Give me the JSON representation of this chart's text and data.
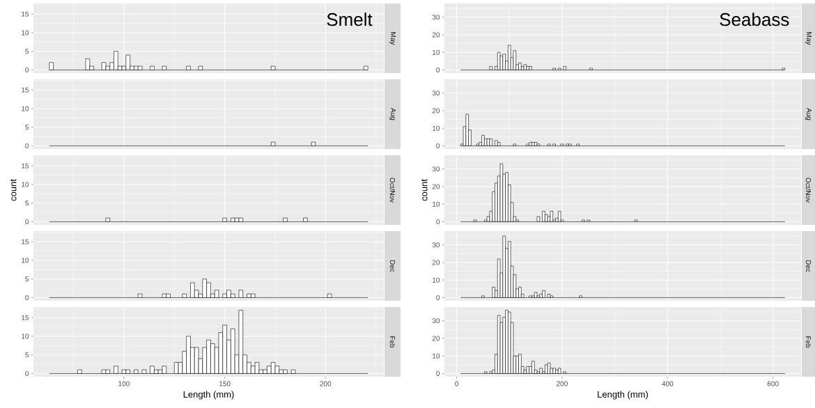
{
  "chart_data": [
    {
      "type": "histogram",
      "title": "Smelt",
      "annotations": [
        "May"
      ],
      "color": "#ffffff",
      "grid": true,
      "tick_labels": "y",
      "xlim": [
        55.1,
        228.9
      ],
      "ylim": [
        -0.85,
        17.85
      ],
      "xticks": [
        100,
        150,
        200
      ],
      "yticks": [
        0,
        5,
        10,
        15
      ],
      "bins": [
        63,
        65,
        67,
        69,
        71,
        73,
        75,
        77,
        79,
        81,
        83,
        85,
        87,
        89,
        91,
        93,
        95,
        97,
        99,
        101,
        103,
        105,
        107,
        109,
        111,
        113,
        115,
        117,
        119,
        121,
        123,
        125,
        127,
        129,
        131,
        133,
        135,
        137,
        139,
        141,
        143,
        145,
        147,
        149,
        151,
        153,
        155,
        157,
        159,
        161,
        163,
        165,
        167,
        169,
        171,
        173,
        175,
        177,
        179,
        181,
        183,
        185,
        187,
        189,
        191,
        193,
        195,
        197,
        199,
        201,
        203,
        205,
        207,
        209,
        211,
        213,
        215,
        217,
        219,
        221
      ],
      "values": [
        2,
        0,
        0,
        0,
        0,
        0,
        0,
        0,
        0,
        3,
        1,
        0,
        0,
        2,
        1,
        2,
        5,
        1,
        1,
        4,
        1,
        1,
        1,
        0,
        0,
        1,
        0,
        0,
        1,
        0,
        0,
        0,
        0,
        0,
        1,
        0,
        0,
        1,
        0,
        0,
        0,
        0,
        0,
        0,
        0,
        0,
        0,
        0,
        0,
        0,
        0,
        0,
        0,
        0,
        0,
        1,
        0,
        0,
        0,
        0,
        0,
        0,
        0,
        0,
        0,
        0,
        0,
        0,
        0,
        0,
        0,
        0,
        0,
        0,
        0,
        0,
        0,
        0,
        1
      ]
    },
    {
      "type": "histogram",
      "title": "Seabass",
      "annotations": [
        "May"
      ],
      "color": "#ffffff",
      "grid": true,
      "tick_labels": "y",
      "xlim": [
        -23.25,
        653.25
      ],
      "ylim": [
        -1.8,
        37.8
      ],
      "xticks": [
        0,
        200,
        400,
        600
      ],
      "yticks": [
        0,
        10,
        20,
        30
      ],
      "bins": [
        7.5,
        12.5,
        17.5,
        22.5,
        27.5,
        32.5,
        37.5,
        42.5,
        47.5,
        52.5,
        57.5,
        62.5,
        67.5,
        72.5,
        77.5,
        82.5,
        87.5,
        92.5,
        97.5,
        102.5,
        107.5,
        112.5,
        117.5,
        122.5,
        127.5,
        132.5,
        137.5,
        142.5,
        147.5,
        152.5,
        157.5,
        162.5,
        167.5,
        172.5,
        177.5,
        182.5,
        187.5,
        192.5,
        197.5,
        202.5,
        207.5,
        212.5,
        217.5,
        222.5,
        227.5,
        232.5,
        237.5,
        242.5,
        247.5,
        252.5,
        257.5,
        262.5,
        267.5,
        272.5,
        277.5,
        282.5,
        287.5,
        292.5,
        297.5,
        302.5,
        307.5,
        312.5,
        317.5,
        322.5,
        327.5,
        332.5,
        337.5,
        342.5,
        347.5,
        352.5,
        357.5,
        362.5,
        367.5,
        372.5,
        377.5,
        382.5,
        387.5,
        392.5,
        397.5,
        402.5,
        407.5,
        412.5,
        417.5,
        422.5,
        427.5,
        432.5,
        437.5,
        442.5,
        447.5,
        452.5,
        457.5,
        462.5,
        467.5,
        472.5,
        477.5,
        482.5,
        487.5,
        492.5,
        497.5,
        502.5,
        507.5,
        512.5,
        517.5,
        522.5,
        527.5,
        532.5,
        537.5,
        542.5,
        547.5,
        552.5,
        557.5,
        562.5,
        567.5,
        572.5,
        577.5,
        582.5,
        587.5,
        592.5,
        597.5,
        602.5,
        607.5,
        612.5,
        617.5,
        622.5
      ],
      "values": [
        0,
        0,
        0,
        0,
        0,
        0,
        0,
        0,
        0,
        0,
        0,
        2,
        0,
        2,
        10,
        8,
        9,
        5,
        14,
        7,
        11,
        3,
        4,
        2,
        3,
        2,
        2,
        0,
        0,
        0,
        0,
        0,
        0,
        0,
        0,
        1,
        0,
        1,
        0,
        2,
        0,
        0,
        0,
        0,
        0,
        0,
        0,
        0,
        0,
        1,
        0,
        0,
        0,
        0,
        0,
        0,
        0,
        0,
        0,
        0,
        0,
        0,
        0,
        0,
        0,
        0,
        0,
        0,
        0,
        0,
        0,
        0,
        0,
        0,
        0,
        0,
        0,
        0,
        0,
        0,
        0,
        0,
        0,
        0,
        0,
        0,
        0,
        0,
        0,
        0,
        0,
        0,
        0,
        0,
        0,
        0,
        0,
        0,
        0,
        0,
        0,
        0,
        0,
        0,
        0,
        0,
        0,
        0,
        0,
        0,
        0,
        0,
        0,
        0,
        0,
        0,
        0,
        0,
        0,
        0,
        0,
        0,
        1
      ]
    },
    {
      "type": "histogram",
      "annotations": [
        "Aug"
      ],
      "color": "#ffffff",
      "grid": true,
      "tick_labels": "y",
      "xlim": [
        55.1,
        228.9
      ],
      "ylim": [
        -0.85,
        17.85
      ],
      "xticks": [
        100,
        150,
        200
      ],
      "yticks": [
        0,
        5,
        10,
        15
      ],
      "bins": [
        63,
        65,
        67,
        69,
        71,
        73,
        75,
        77,
        79,
        81,
        83,
        85,
        87,
        89,
        91,
        93,
        95,
        97,
        99,
        101,
        103,
        105,
        107,
        109,
        111,
        113,
        115,
        117,
        119,
        121,
        123,
        125,
        127,
        129,
        131,
        133,
        135,
        137,
        139,
        141,
        143,
        145,
        147,
        149,
        151,
        153,
        155,
        157,
        159,
        161,
        163,
        165,
        167,
        169,
        171,
        173,
        175,
        177,
        179,
        181,
        183,
        185,
        187,
        189,
        191,
        193,
        195,
        197,
        199,
        201,
        203,
        205,
        207,
        209,
        211,
        213,
        215,
        217,
        219,
        221
      ],
      "values": [
        0,
        0,
        0,
        0,
        0,
        0,
        0,
        0,
        0,
        0,
        0,
        0,
        0,
        0,
        0,
        0,
        0,
        0,
        0,
        0,
        0,
        0,
        0,
        0,
        0,
        0,
        0,
        0,
        0,
        0,
        0,
        0,
        0,
        0,
        0,
        0,
        0,
        0,
        0,
        0,
        0,
        0,
        0,
        0,
        0,
        0,
        0,
        0,
        0,
        0,
        0,
        0,
        0,
        0,
        0,
        1,
        0,
        0,
        0,
        0,
        0,
        0,
        0,
        0,
        0,
        1,
        0,
        0,
        0,
        0,
        0,
        0,
        0,
        0,
        0,
        0,
        0,
        0,
        0
      ]
    },
    {
      "type": "histogram",
      "annotations": [
        "Aug"
      ],
      "color": "#ffffff",
      "grid": true,
      "tick_labels": "y",
      "xlim": [
        -23.25,
        653.25
      ],
      "ylim": [
        -1.8,
        37.8
      ],
      "xticks": [
        0,
        200,
        400,
        600
      ],
      "yticks": [
        0,
        10,
        20,
        30
      ],
      "bins": [
        7.5,
        12.5,
        17.5,
        22.5,
        27.5,
        32.5,
        37.5,
        42.5,
        47.5,
        52.5,
        57.5,
        62.5,
        67.5,
        72.5,
        77.5,
        82.5,
        87.5,
        92.5,
        97.5,
        102.5,
        107.5,
        112.5,
        117.5,
        122.5,
        127.5,
        132.5,
        137.5,
        142.5,
        147.5,
        152.5,
        157.5,
        162.5,
        167.5,
        172.5,
        177.5,
        182.5,
        187.5,
        192.5,
        197.5,
        202.5,
        207.5,
        212.5,
        217.5,
        222.5,
        227.5,
        232.5,
        237.5,
        242.5,
        247.5,
        252.5,
        257.5,
        262.5,
        267.5,
        272.5,
        277.5,
        282.5,
        287.5,
        292.5,
        297.5,
        302.5,
        307.5,
        312.5,
        317.5,
        322.5,
        327.5,
        332.5,
        337.5,
        342.5,
        347.5,
        352.5,
        357.5,
        362.5,
        367.5,
        372.5,
        377.5,
        382.5,
        387.5,
        392.5,
        397.5,
        402.5,
        407.5,
        412.5,
        417.5,
        422.5,
        427.5,
        432.5,
        437.5,
        442.5,
        447.5,
        452.5,
        457.5,
        462.5,
        467.5,
        472.5,
        477.5,
        482.5,
        487.5,
        492.5,
        497.5,
        502.5,
        507.5,
        512.5,
        517.5,
        522.5,
        527.5,
        532.5,
        537.5,
        542.5,
        547.5,
        552.5,
        557.5,
        562.5,
        567.5,
        572.5,
        577.5,
        582.5,
        587.5,
        592.5,
        597.5,
        602.5,
        607.5,
        612.5,
        617.5,
        622.5
      ],
      "values": [
        1,
        11,
        18,
        9,
        0,
        0,
        1,
        2,
        6,
        4,
        4,
        4,
        0,
        3,
        2,
        0,
        0,
        0,
        0,
        0,
        1,
        0,
        0,
        0,
        0,
        1,
        2,
        2,
        2,
        1,
        0,
        0,
        0,
        1,
        0,
        1,
        0,
        0,
        1,
        0,
        1,
        1,
        0,
        0,
        1,
        0,
        0,
        0,
        0,
        0,
        0,
        0,
        0,
        0,
        0,
        0,
        0,
        0,
        0,
        0,
        0,
        0,
        0,
        0,
        0,
        0,
        0,
        0,
        0,
        0,
        0,
        0,
        0,
        0,
        0,
        0,
        0,
        0,
        0,
        0,
        0,
        0,
        0,
        0,
        0,
        0,
        0,
        0,
        0,
        0,
        0,
        0,
        0,
        0,
        0,
        0,
        0,
        0,
        0,
        0,
        0,
        0,
        0,
        0,
        0,
        0,
        0,
        0,
        0,
        0,
        0,
        0,
        0,
        0,
        0,
        0,
        0,
        0,
        0,
        0,
        0,
        0,
        0
      ]
    },
    {
      "type": "histogram",
      "annotations": [
        "Oct/Nov"
      ],
      "ylabel": "count",
      "color": "#ffffff",
      "grid": true,
      "tick_labels": "y",
      "xlim": [
        55.1,
        228.9
      ],
      "ylim": [
        -0.85,
        17.85
      ],
      "xticks": [
        100,
        150,
        200
      ],
      "yticks": [
        0,
        5,
        10,
        15
      ],
      "bins": [
        63,
        65,
        67,
        69,
        71,
        73,
        75,
        77,
        79,
        81,
        83,
        85,
        87,
        89,
        91,
        93,
        95,
        97,
        99,
        101,
        103,
        105,
        107,
        109,
        111,
        113,
        115,
        117,
        119,
        121,
        123,
        125,
        127,
        129,
        131,
        133,
        135,
        137,
        139,
        141,
        143,
        145,
        147,
        149,
        151,
        153,
        155,
        157,
        159,
        161,
        163,
        165,
        167,
        169,
        171,
        173,
        175,
        177,
        179,
        181,
        183,
        185,
        187,
        189,
        191,
        193,
        195,
        197,
        199,
        201,
        203,
        205,
        207,
        209,
        211,
        213,
        215,
        217,
        219,
        221
      ],
      "values": [
        0,
        0,
        0,
        0,
        0,
        0,
        0,
        0,
        0,
        0,
        0,
        0,
        0,
        0,
        1,
        0,
        0,
        0,
        0,
        0,
        0,
        0,
        0,
        0,
        0,
        0,
        0,
        0,
        0,
        0,
        0,
        0,
        0,
        0,
        0,
        0,
        0,
        0,
        0,
        0,
        0,
        0,
        0,
        1,
        0,
        1,
        1,
        1,
        0,
        0,
        0,
        0,
        0,
        0,
        0,
        0,
        0,
        0,
        1,
        0,
        0,
        0,
        0,
        1,
        0,
        0,
        0,
        0,
        0,
        0,
        0,
        0,
        0,
        0,
        0,
        0,
        0,
        0,
        0
      ]
    },
    {
      "type": "histogram",
      "annotations": [
        "Oct/Nov"
      ],
      "ylabel": "count",
      "color": "#ffffff",
      "grid": true,
      "tick_labels": "y",
      "xlim": [
        -23.25,
        653.25
      ],
      "ylim": [
        -1.8,
        37.8
      ],
      "xticks": [
        0,
        200,
        400,
        600
      ],
      "yticks": [
        0,
        10,
        20,
        30
      ],
      "bins": [
        7.5,
        12.5,
        17.5,
        22.5,
        27.5,
        32.5,
        37.5,
        42.5,
        47.5,
        52.5,
        57.5,
        62.5,
        67.5,
        72.5,
        77.5,
        82.5,
        87.5,
        92.5,
        97.5,
        102.5,
        107.5,
        112.5,
        117.5,
        122.5,
        127.5,
        132.5,
        137.5,
        142.5,
        147.5,
        152.5,
        157.5,
        162.5,
        167.5,
        172.5,
        177.5,
        182.5,
        187.5,
        192.5,
        197.5,
        202.5,
        207.5,
        212.5,
        217.5,
        222.5,
        227.5,
        232.5,
        237.5,
        242.5,
        247.5,
        252.5,
        257.5,
        262.5,
        267.5,
        272.5,
        277.5,
        282.5,
        287.5,
        292.5,
        297.5,
        302.5,
        307.5,
        312.5,
        317.5,
        322.5,
        327.5,
        332.5,
        337.5,
        342.5,
        347.5,
        352.5,
        357.5,
        362.5,
        367.5,
        372.5,
        377.5,
        382.5,
        387.5,
        392.5,
        397.5,
        402.5,
        407.5,
        412.5,
        417.5,
        422.5,
        427.5,
        432.5,
        437.5,
        442.5,
        447.5,
        452.5,
        457.5,
        462.5,
        467.5,
        472.5,
        477.5,
        482.5,
        487.5,
        492.5,
        497.5,
        502.5,
        507.5,
        512.5,
        517.5,
        522.5,
        527.5,
        532.5,
        537.5,
        542.5,
        547.5,
        552.5,
        557.5,
        562.5,
        567.5,
        572.5,
        577.5,
        582.5,
        587.5,
        592.5,
        597.5,
        602.5,
        607.5,
        612.5,
        617.5,
        622.5
      ],
      "values": [
        0,
        0,
        0,
        0,
        0,
        1,
        0,
        0,
        0,
        1,
        3,
        6,
        17,
        22,
        26,
        33,
        27,
        28,
        21,
        11,
        3,
        1,
        0,
        0,
        0,
        0,
        0,
        0,
        0,
        3,
        0,
        6,
        4,
        3,
        6,
        1,
        2,
        6,
        1,
        0,
        0,
        0,
        0,
        0,
        0,
        0,
        1,
        0,
        1,
        0,
        0,
        0,
        0,
        0,
        0,
        0,
        0,
        0,
        0,
        0,
        0,
        0,
        0,
        0,
        0,
        0,
        1,
        0,
        0,
        0,
        0,
        0,
        0,
        0,
        0,
        0,
        0,
        0,
        0,
        0,
        0,
        0,
        0,
        0,
        0,
        0,
        0,
        0,
        0,
        0,
        0,
        0,
        0,
        0,
        0,
        0,
        0,
        0,
        0,
        0,
        0,
        0,
        0,
        0,
        0,
        0,
        0,
        0,
        0,
        0,
        0,
        0,
        0,
        0,
        0,
        0,
        0,
        0,
        0,
        0,
        0,
        0,
        0
      ]
    },
    {
      "type": "histogram",
      "annotations": [
        "Dec"
      ],
      "color": "#ffffff",
      "grid": true,
      "tick_labels": "y",
      "xlim": [
        55.1,
        228.9
      ],
      "ylim": [
        -0.85,
        17.85
      ],
      "xticks": [
        100,
        150,
        200
      ],
      "yticks": [
        0,
        5,
        10,
        15
      ],
      "bins": [
        63,
        65,
        67,
        69,
        71,
        73,
        75,
        77,
        79,
        81,
        83,
        85,
        87,
        89,
        91,
        93,
        95,
        97,
        99,
        101,
        103,
        105,
        107,
        109,
        111,
        113,
        115,
        117,
        119,
        121,
        123,
        125,
        127,
        129,
        131,
        133,
        135,
        137,
        139,
        141,
        143,
        145,
        147,
        149,
        151,
        153,
        155,
        157,
        159,
        161,
        163,
        165,
        167,
        169,
        171,
        173,
        175,
        177,
        179,
        181,
        183,
        185,
        187,
        189,
        191,
        193,
        195,
        197,
        199,
        201,
        203,
        205,
        207,
        209,
        211,
        213,
        215,
        217,
        219,
        221
      ],
      "values": [
        0,
        0,
        0,
        0,
        0,
        0,
        0,
        0,
        0,
        0,
        0,
        0,
        0,
        0,
        0,
        0,
        0,
        0,
        0,
        0,
        0,
        0,
        1,
        0,
        0,
        0,
        0,
        0,
        1,
        1,
        0,
        0,
        0,
        1,
        0,
        4,
        2,
        1,
        5,
        4,
        1,
        2,
        0,
        1,
        2,
        1,
        0,
        2,
        0,
        1,
        1,
        0,
        0,
        0,
        0,
        0,
        0,
        0,
        0,
        0,
        0,
        0,
        0,
        0,
        0,
        0,
        0,
        0,
        0,
        1,
        0,
        0,
        0,
        0,
        0,
        0,
        0,
        0,
        0
      ]
    },
    {
      "type": "histogram",
      "annotations": [
        "Dec"
      ],
      "color": "#ffffff",
      "grid": true,
      "tick_labels": "y",
      "xlim": [
        -23.25,
        653.25
      ],
      "ylim": [
        -1.8,
        37.8
      ],
      "xticks": [
        0,
        200,
        400,
        600
      ],
      "yticks": [
        0,
        10,
        20,
        30
      ],
      "bins": [
        7.5,
        12.5,
        17.5,
        22.5,
        27.5,
        32.5,
        37.5,
        42.5,
        47.5,
        52.5,
        57.5,
        62.5,
        67.5,
        72.5,
        77.5,
        82.5,
        87.5,
        92.5,
        97.5,
        102.5,
        107.5,
        112.5,
        117.5,
        122.5,
        127.5,
        132.5,
        137.5,
        142.5,
        147.5,
        152.5,
        157.5,
        162.5,
        167.5,
        172.5,
        177.5,
        182.5,
        187.5,
        192.5,
        197.5,
        202.5,
        207.5,
        212.5,
        217.5,
        222.5,
        227.5,
        232.5,
        237.5,
        242.5,
        247.5,
        252.5,
        257.5,
        262.5,
        267.5,
        272.5,
        277.5,
        282.5,
        287.5,
        292.5,
        297.5,
        302.5,
        307.5,
        312.5,
        317.5,
        322.5,
        327.5,
        332.5,
        337.5,
        342.5,
        347.5,
        352.5,
        357.5,
        362.5,
        367.5,
        372.5,
        377.5,
        382.5,
        387.5,
        392.5,
        397.5,
        402.5,
        407.5,
        412.5,
        417.5,
        422.5,
        427.5,
        432.5,
        437.5,
        442.5,
        447.5,
        452.5,
        457.5,
        462.5,
        467.5,
        472.5,
        477.5,
        482.5,
        487.5,
        492.5,
        497.5,
        502.5,
        507.5,
        512.5,
        517.5,
        522.5,
        527.5,
        532.5,
        537.5,
        542.5,
        547.5,
        552.5,
        557.5,
        562.5,
        567.5,
        572.5,
        577.5,
        582.5,
        587.5,
        592.5,
        597.5,
        602.5,
        607.5,
        612.5,
        617.5,
        622.5
      ],
      "values": [
        0,
        0,
        0,
        0,
        0,
        0,
        0,
        0,
        1,
        0,
        0,
        0,
        6,
        4,
        22,
        14,
        35,
        28,
        32,
        18,
        13,
        5,
        6,
        2,
        0,
        0,
        1,
        1,
        3,
        1,
        2,
        4,
        0,
        2,
        1,
        0,
        0,
        0,
        0,
        0,
        0,
        0,
        0,
        0,
        0,
        1,
        0,
        0,
        0,
        0,
        0,
        0,
        0,
        0,
        0,
        0,
        0,
        0,
        0,
        0,
        0,
        0,
        0,
        0,
        0,
        0,
        0,
        0,
        0,
        0,
        0,
        0,
        0,
        0,
        0,
        0,
        0,
        0,
        0,
        0,
        0,
        0,
        0,
        0,
        0,
        0,
        0,
        0,
        0,
        0,
        0,
        0,
        0,
        0,
        0,
        0,
        0,
        0,
        0,
        0,
        0,
        0,
        0,
        0,
        0,
        0,
        0,
        0,
        0,
        0,
        0,
        0,
        0,
        0,
        0,
        0,
        0,
        0,
        0,
        0,
        0,
        0,
        0
      ]
    },
    {
      "type": "histogram",
      "annotations": [
        "Feb"
      ],
      "xlabel": "Length (mm)",
      "color": "#ffffff",
      "grid": true,
      "xlim": [
        55.1,
        228.9
      ],
      "ylim": [
        -0.85,
        17.85
      ],
      "xticks": [
        100,
        150,
        200
      ],
      "yticks": [
        0,
        5,
        10,
        15
      ],
      "bins": [
        63,
        65,
        67,
        69,
        71,
        73,
        75,
        77,
        79,
        81,
        83,
        85,
        87,
        89,
        91,
        93,
        95,
        97,
        99,
        101,
        103,
        105,
        107,
        109,
        111,
        113,
        115,
        117,
        119,
        121,
        123,
        125,
        127,
        129,
        131,
        133,
        135,
        137,
        139,
        141,
        143,
        145,
        147,
        149,
        151,
        153,
        155,
        157,
        159,
        161,
        163,
        165,
        167,
        169,
        171,
        173,
        175,
        177,
        179,
        181,
        183,
        185,
        187,
        189,
        191,
        193,
        195,
        197,
        199,
        201,
        203,
        205,
        207,
        209,
        211,
        213,
        215,
        217,
        219,
        221
      ],
      "values": [
        0,
        0,
        0,
        0,
        0,
        0,
        0,
        1,
        0,
        0,
        0,
        0,
        0,
        1,
        1,
        0,
        2,
        0,
        1,
        1,
        0,
        1,
        0,
        1,
        0,
        2,
        1,
        1,
        2,
        0,
        0,
        3,
        3,
        6,
        10,
        7,
        7,
        4,
        7,
        9,
        8,
        7,
        11,
        13,
        9,
        12,
        5,
        17,
        5,
        3,
        2,
        3,
        1,
        1,
        2,
        3,
        2,
        1,
        1,
        0,
        1,
        0,
        0,
        0,
        0,
        0,
        0,
        0,
        0,
        0,
        0,
        0,
        0,
        0,
        0,
        0,
        0,
        0,
        0
      ]
    },
    {
      "type": "histogram",
      "annotations": [
        "Feb"
      ],
      "xlabel": "Length (mm)",
      "color": "#ffffff",
      "grid": true,
      "xlim": [
        -23.25,
        653.25
      ],
      "ylim": [
        -1.8,
        37.8
      ],
      "xticks": [
        0,
        200,
        400,
        600
      ],
      "yticks": [
        0,
        10,
        20,
        30
      ],
      "bins": [
        7.5,
        12.5,
        17.5,
        22.5,
        27.5,
        32.5,
        37.5,
        42.5,
        47.5,
        52.5,
        57.5,
        62.5,
        67.5,
        72.5,
        77.5,
        82.5,
        87.5,
        92.5,
        97.5,
        102.5,
        107.5,
        112.5,
        117.5,
        122.5,
        127.5,
        132.5,
        137.5,
        142.5,
        147.5,
        152.5,
        157.5,
        162.5,
        167.5,
        172.5,
        177.5,
        182.5,
        187.5,
        192.5,
        197.5,
        202.5,
        207.5,
        212.5,
        217.5,
        222.5,
        227.5,
        232.5,
        237.5,
        242.5,
        247.5,
        252.5,
        257.5,
        262.5,
        267.5,
        272.5,
        277.5,
        282.5,
        287.5,
        292.5,
        297.5,
        302.5,
        307.5,
        312.5,
        317.5,
        322.5,
        327.5,
        332.5,
        337.5,
        342.5,
        347.5,
        352.5,
        357.5,
        362.5,
        367.5,
        372.5,
        377.5,
        382.5,
        387.5,
        392.5,
        397.5,
        402.5,
        407.5,
        412.5,
        417.5,
        422.5,
        427.5,
        432.5,
        437.5,
        442.5,
        447.5,
        452.5,
        457.5,
        462.5,
        467.5,
        472.5,
        477.5,
        482.5,
        487.5,
        492.5,
        497.5,
        502.5,
        507.5,
        512.5,
        517.5,
        522.5,
        527.5,
        532.5,
        537.5,
        542.5,
        547.5,
        552.5,
        557.5,
        562.5,
        567.5,
        572.5,
        577.5,
        582.5,
        587.5,
        592.5,
        597.5,
        602.5,
        607.5,
        612.5,
        617.5,
        622.5
      ],
      "values": [
        0,
        0,
        0,
        0,
        0,
        0,
        0,
        0,
        0,
        1,
        0,
        1,
        2,
        11,
        33,
        29,
        32,
        36,
        35,
        29,
        10,
        10,
        11,
        4,
        2,
        4,
        4,
        7,
        2,
        1,
        3,
        1,
        5,
        6,
        3,
        3,
        2,
        3,
        0,
        1,
        0,
        0,
        0,
        0,
        0,
        0,
        0,
        0,
        0,
        0,
        0,
        0,
        0,
        0,
        0,
        0,
        0,
        0,
        0,
        0,
        0,
        0,
        0,
        0,
        0,
        0,
        0,
        0,
        0,
        0,
        0,
        0,
        0,
        0,
        0,
        0,
        0,
        0,
        0,
        0,
        0,
        0,
        0,
        0,
        0,
        0,
        0,
        0,
        0,
        0,
        0,
        0,
        0,
        0,
        0,
        0,
        0,
        0,
        0,
        0,
        0,
        0,
        0,
        0,
        0,
        0,
        0,
        0,
        0,
        0,
        0,
        0,
        0,
        0,
        0,
        0,
        0,
        0,
        0,
        0,
        0,
        0,
        0
      ]
    }
  ]
}
